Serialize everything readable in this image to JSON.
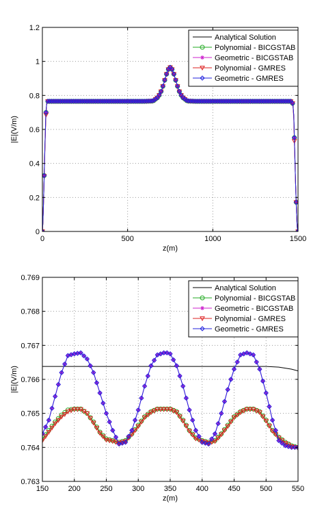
{
  "chart_data": [
    {
      "type": "line",
      "title": "",
      "xlabel": "z(m)",
      "ylabel": "|E|(V/m)",
      "xlim": [
        0,
        1500
      ],
      "ylim": [
        0,
        1.2
      ],
      "xticks": [
        0,
        500,
        1000,
        1500
      ],
      "xtick_labels": [
        "0",
        "500",
        "1000",
        "1500"
      ],
      "yticks": [
        0,
        0.2,
        0.4,
        0.6,
        0.8,
        1.0,
        1.2
      ],
      "ytick_labels": [
        "0",
        "0.2",
        "0.4",
        "0.6",
        "0.8",
        "1",
        "1.2"
      ],
      "grid": true,
      "legend_position": "top-right",
      "series": [
        {
          "name": "Analytical Solution",
          "color": "#000000",
          "marker": "none",
          "x": [
            0,
            3,
            6,
            10,
            15,
            20,
            25,
            30,
            40,
            100,
            300,
            500,
            600,
            650,
            680,
            700,
            715,
            730,
            740,
            750,
            760,
            770,
            785,
            800,
            820,
            850,
            900,
            1100,
            1300,
            1460,
            1470,
            1475,
            1480,
            1485,
            1490,
            1494,
            1497,
            1500
          ],
          "y": [
            0,
            0.05,
            0.15,
            0.3,
            0.5,
            0.68,
            0.75,
            0.766,
            0.766,
            0.766,
            0.766,
            0.766,
            0.766,
            0.768,
            0.79,
            0.83,
            0.88,
            0.93,
            0.955,
            0.965,
            0.955,
            0.93,
            0.88,
            0.83,
            0.79,
            0.768,
            0.766,
            0.766,
            0.766,
            0.766,
            0.75,
            0.68,
            0.5,
            0.3,
            0.15,
            0.05,
            0.0,
            0
          ]
        },
        {
          "name": "Polynomial - BICGSTAB",
          "color": "#22aa22",
          "marker": "circle",
          "x": [
            0,
            3,
            6,
            10,
            15,
            20,
            25,
            30,
            40,
            100,
            300,
            500,
            600,
            650,
            680,
            700,
            715,
            730,
            740,
            750,
            760,
            770,
            785,
            800,
            820,
            850,
            900,
            1100,
            1300,
            1460,
            1470,
            1475,
            1480,
            1485,
            1490,
            1494,
            1497,
            1500
          ],
          "y": [
            0,
            0.05,
            0.15,
            0.3,
            0.5,
            0.68,
            0.75,
            0.765,
            0.765,
            0.765,
            0.765,
            0.765,
            0.765,
            0.767,
            0.79,
            0.83,
            0.88,
            0.93,
            0.955,
            0.965,
            0.955,
            0.93,
            0.88,
            0.83,
            0.79,
            0.767,
            0.765,
            0.765,
            0.765,
            0.765,
            0.75,
            0.68,
            0.5,
            0.3,
            0.15,
            0.05,
            0.0,
            0
          ]
        },
        {
          "name": "Geometric - BICGSTAB",
          "color": "#cc22cc",
          "marker": "star",
          "x": [
            0,
            3,
            6,
            10,
            15,
            20,
            25,
            30,
            40,
            100,
            300,
            500,
            600,
            650,
            680,
            700,
            715,
            730,
            740,
            750,
            760,
            770,
            785,
            800,
            820,
            850,
            900,
            1100,
            1300,
            1460,
            1470,
            1475,
            1480,
            1485,
            1490,
            1494,
            1497,
            1500
          ],
          "y": [
            0,
            0.05,
            0.15,
            0.3,
            0.5,
            0.68,
            0.75,
            0.766,
            0.766,
            0.766,
            0.766,
            0.766,
            0.766,
            0.768,
            0.79,
            0.83,
            0.88,
            0.93,
            0.955,
            0.965,
            0.955,
            0.93,
            0.88,
            0.83,
            0.79,
            0.768,
            0.766,
            0.766,
            0.766,
            0.766,
            0.75,
            0.68,
            0.5,
            0.3,
            0.15,
            0.05,
            0.0,
            0
          ]
        },
        {
          "name": "Polynomial - GMRES",
          "color": "#dd2222",
          "marker": "triangle-down",
          "x": [
            0,
            3,
            6,
            10,
            15,
            20,
            25,
            30,
            40,
            100,
            300,
            500,
            600,
            650,
            680,
            700,
            715,
            730,
            740,
            750,
            760,
            770,
            785,
            800,
            820,
            850,
            900,
            1100,
            1300,
            1460,
            1470,
            1475,
            1480,
            1485,
            1490,
            1494,
            1497,
            1500
          ],
          "y": [
            0,
            0.05,
            0.15,
            0.3,
            0.48,
            0.66,
            0.75,
            0.765,
            0.765,
            0.765,
            0.765,
            0.765,
            0.765,
            0.767,
            0.79,
            0.83,
            0.88,
            0.93,
            0.955,
            0.965,
            0.955,
            0.93,
            0.88,
            0.83,
            0.79,
            0.767,
            0.765,
            0.765,
            0.765,
            0.765,
            0.75,
            0.66,
            0.48,
            0.3,
            0.15,
            0.05,
            0.0,
            0
          ]
        },
        {
          "name": "Geometric - GMRES",
          "color": "#2222dd",
          "marker": "diamond",
          "x": [
            0,
            3,
            6,
            10,
            15,
            20,
            25,
            30,
            40,
            100,
            300,
            500,
            600,
            650,
            680,
            700,
            715,
            730,
            740,
            750,
            760,
            770,
            785,
            800,
            820,
            850,
            900,
            1100,
            1300,
            1460,
            1470,
            1475,
            1480,
            1485,
            1490,
            1494,
            1497,
            1500
          ],
          "y": [
            0,
            0.05,
            0.15,
            0.3,
            0.5,
            0.68,
            0.75,
            0.766,
            0.766,
            0.766,
            0.766,
            0.766,
            0.766,
            0.768,
            0.79,
            0.83,
            0.88,
            0.93,
            0.955,
            0.965,
            0.955,
            0.93,
            0.88,
            0.83,
            0.79,
            0.768,
            0.766,
            0.766,
            0.766,
            0.766,
            0.75,
            0.68,
            0.5,
            0.3,
            0.15,
            0.05,
            0.0,
            0
          ]
        }
      ]
    },
    {
      "type": "line",
      "title": "",
      "xlabel": "z(m)",
      "ylabel": "|E|(V/m)",
      "xlim": [
        150,
        550
      ],
      "ylim": [
        0.763,
        0.769
      ],
      "xticks": [
        150,
        200,
        250,
        300,
        350,
        400,
        450,
        500,
        550
      ],
      "xtick_labels": [
        "150",
        "200",
        "250",
        "300",
        "350",
        "400",
        "450",
        "500",
        "550"
      ],
      "yticks": [
        0.763,
        0.764,
        0.765,
        0.766,
        0.767,
        0.768,
        0.769
      ],
      "ytick_labels": [
        "0.763",
        "0.764",
        "0.765",
        "0.766",
        "0.767",
        "0.768",
        "0.769"
      ],
      "grid": true,
      "legend_position": "top-right",
      "series": [
        {
          "name": "Analytical Solution",
          "color": "#000000",
          "marker": "none",
          "x": [
            150,
            200,
            250,
            300,
            350,
            400,
            450,
            500,
            520,
            540,
            550
          ],
          "y": [
            0.76638,
            0.76638,
            0.76638,
            0.76638,
            0.76638,
            0.76638,
            0.76638,
            0.76638,
            0.76636,
            0.7663,
            0.76625
          ]
        },
        {
          "name": "Polynomial - BICGSTAB",
          "color": "#22aa22",
          "marker": "circle",
          "x": [
            150,
            160,
            170,
            180,
            190,
            200,
            210,
            220,
            230,
            240,
            250,
            260,
            270,
            280,
            290,
            300,
            310,
            320,
            330,
            340,
            345,
            350,
            360,
            370,
            380,
            390,
            400,
            410,
            420,
            430,
            440,
            450,
            460,
            470,
            480,
            490,
            500,
            510,
            520,
            530,
            540,
            550
          ],
          "y": [
            0.76425,
            0.7645,
            0.76475,
            0.76495,
            0.7651,
            0.76513,
            0.76513,
            0.765,
            0.76475,
            0.76445,
            0.76425,
            0.7642,
            0.76415,
            0.7642,
            0.7644,
            0.76465,
            0.7649,
            0.76505,
            0.76513,
            0.76513,
            0.76513,
            0.76513,
            0.76505,
            0.7648,
            0.7645,
            0.76428,
            0.7642,
            0.76415,
            0.7642,
            0.7644,
            0.76465,
            0.7649,
            0.76505,
            0.76513,
            0.76513,
            0.76505,
            0.7648,
            0.7645,
            0.7643,
            0.76415,
            0.76405,
            0.764
          ]
        },
        {
          "name": "Geometric - BICGSTAB",
          "color": "#cc22cc",
          "marker": "star",
          "x": [
            150,
            160,
            170,
            180,
            190,
            200,
            210,
            220,
            230,
            240,
            250,
            260,
            270,
            280,
            290,
            300,
            310,
            320,
            330,
            340,
            345,
            350,
            360,
            370,
            380,
            390,
            400,
            410,
            420,
            430,
            440,
            450,
            460,
            470,
            480,
            490,
            500,
            510,
            520,
            530,
            540,
            550
          ],
          "y": [
            0.7644,
            0.7648,
            0.7655,
            0.7662,
            0.7667,
            0.76675,
            0.76678,
            0.7666,
            0.7662,
            0.7656,
            0.765,
            0.7645,
            0.7641,
            0.76415,
            0.7645,
            0.7651,
            0.7658,
            0.7664,
            0.76672,
            0.76678,
            0.76678,
            0.76675,
            0.7664,
            0.7658,
            0.7651,
            0.7645,
            0.76415,
            0.7641,
            0.7644,
            0.765,
            0.7657,
            0.7663,
            0.76672,
            0.76678,
            0.76672,
            0.7663,
            0.7656,
            0.7648,
            0.7642,
            0.76405,
            0.764,
            0.764
          ]
        },
        {
          "name": "Polynomial - GMRES",
          "color": "#dd2222",
          "marker": "triangle-down",
          "x": [
            150,
            160,
            170,
            180,
            190,
            200,
            210,
            220,
            230,
            240,
            250,
            260,
            270,
            280,
            290,
            300,
            310,
            320,
            330,
            340,
            345,
            350,
            360,
            370,
            380,
            390,
            400,
            410,
            420,
            430,
            440,
            450,
            460,
            470,
            480,
            490,
            500,
            510,
            520,
            530,
            540,
            550
          ],
          "y": [
            0.7642,
            0.76445,
            0.7647,
            0.7649,
            0.76505,
            0.76512,
            0.76512,
            0.765,
            0.76472,
            0.76442,
            0.76422,
            0.76418,
            0.76413,
            0.76418,
            0.76438,
            0.76462,
            0.76488,
            0.76503,
            0.76512,
            0.76512,
            0.76512,
            0.76512,
            0.76503,
            0.76478,
            0.76448,
            0.76426,
            0.76418,
            0.76413,
            0.76418,
            0.76438,
            0.76462,
            0.76488,
            0.76503,
            0.76512,
            0.76512,
            0.76503,
            0.76478,
            0.76448,
            0.76428,
            0.76413,
            0.76403,
            0.76398
          ]
        },
        {
          "name": "Geometric - GMRES",
          "color": "#2222dd",
          "marker": "diamond",
          "x": [
            150,
            160,
            170,
            180,
            190,
            200,
            210,
            220,
            230,
            240,
            250,
            260,
            270,
            280,
            290,
            300,
            310,
            320,
            330,
            340,
            345,
            350,
            360,
            370,
            380,
            390,
            400,
            410,
            420,
            430,
            440,
            450,
            460,
            470,
            480,
            490,
            500,
            510,
            520,
            530,
            540,
            550
          ],
          "y": [
            0.7644,
            0.7648,
            0.7655,
            0.7662,
            0.7667,
            0.76675,
            0.76678,
            0.7666,
            0.7662,
            0.7656,
            0.765,
            0.7645,
            0.7641,
            0.76415,
            0.7645,
            0.7651,
            0.7658,
            0.7664,
            0.76672,
            0.76678,
            0.76678,
            0.76675,
            0.7664,
            0.7658,
            0.7651,
            0.7645,
            0.76415,
            0.7641,
            0.7644,
            0.765,
            0.7657,
            0.7663,
            0.76672,
            0.76678,
            0.76672,
            0.7663,
            0.7656,
            0.7648,
            0.7642,
            0.76405,
            0.764,
            0.764
          ]
        }
      ]
    }
  ]
}
